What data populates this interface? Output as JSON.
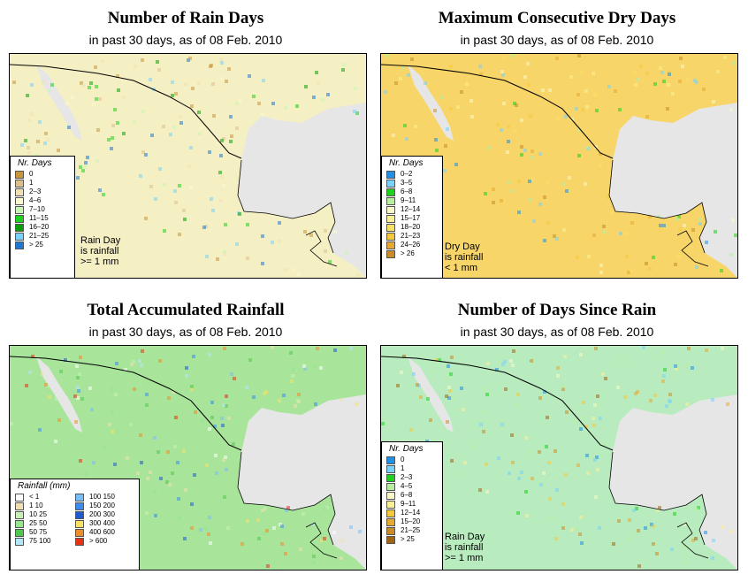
{
  "panels": {
    "rain_days": {
      "title": "Number of Rain Days",
      "subtitle": "in past 30 days, as of  08 Feb. 2010",
      "legend_title": "Nr. Days",
      "legend": [
        {
          "label": "0",
          "color": "#c8963c"
        },
        {
          "label": "1",
          "color": "#dcc08c"
        },
        {
          "label": "2–3",
          "color": "#f0e0b4"
        },
        {
          "label": "4–6",
          "color": "#fafacc"
        },
        {
          "label": "7–10",
          "color": "#c8f5b4"
        },
        {
          "label": "11–15",
          "color": "#1ed21e"
        },
        {
          "label": "16–20",
          "color": "#0a9e0a"
        },
        {
          "label": "21–25",
          "color": "#78d2fa"
        },
        {
          "label": "> 25",
          "color": "#1e78d2"
        }
      ],
      "note": "Rain Day\nis rainfall\n>= 1 mm",
      "land_color": "#f5efc4"
    },
    "dry_days": {
      "title": "Maximum Consecutive Dry Days",
      "subtitle": "in past 30 days, as of  08 Feb. 2010",
      "legend_title": "Nr. Days",
      "legend": [
        {
          "label": "0–2",
          "color": "#1e90e6"
        },
        {
          "label": "3–5",
          "color": "#78d2fa"
        },
        {
          "label": "6–8",
          "color": "#1ed21e"
        },
        {
          "label": "9–11",
          "color": "#b4f0a0"
        },
        {
          "label": "12–14",
          "color": "#fafac8"
        },
        {
          "label": "15–17",
          "color": "#faf096"
        },
        {
          "label": "18–20",
          "color": "#fae164"
        },
        {
          "label": "21–23",
          "color": "#f5c83c"
        },
        {
          "label": "24–26",
          "color": "#e6aa32"
        },
        {
          "label": "> 26",
          "color": "#c88c28"
        }
      ],
      "note": "Dry Day\nis rainfall\n< 1 mm",
      "land_color": "#f7d568"
    },
    "total_rain": {
      "title": "Total Accumulated Rainfall",
      "subtitle": "in past 30 days, as of  08 Feb. 2010",
      "legend_title": "Rainfall (mm)",
      "legend": [
        {
          "label": "< 1",
          "color": "#ffffff"
        },
        {
          "label": "1     10",
          "color": "#f0e0b4"
        },
        {
          "label": "10     25",
          "color": "#c8f0b4"
        },
        {
          "label": "25     50",
          "color": "#96e68c"
        },
        {
          "label": "50     75",
          "color": "#50c850"
        },
        {
          "label": "75   100",
          "color": "#b4e6fa"
        },
        {
          "label": "100   150",
          "color": "#78befa"
        },
        {
          "label": "150   200",
          "color": "#3c8cf0"
        },
        {
          "label": "200   300",
          "color": "#1e5ad2"
        },
        {
          "label": "300   400",
          "color": "#fae164"
        },
        {
          "label": "400   600",
          "color": "#f08c28"
        },
        {
          "label": "> 600",
          "color": "#e63214"
        }
      ],
      "land_color": "#a8e49a"
    },
    "days_since": {
      "title": "Number of Days Since Rain",
      "subtitle": "in past 30 days, as of  08 Feb. 2010",
      "legend_title": "Nr. Days",
      "legend": [
        {
          "label": "0",
          "color": "#1e90e6"
        },
        {
          "label": "1",
          "color": "#78d2fa"
        },
        {
          "label": "2–3",
          "color": "#1ed21e"
        },
        {
          "label": "4–5",
          "color": "#b4f0a0"
        },
        {
          "label": "6–8",
          "color": "#fafac8"
        },
        {
          "label": "9–11",
          "color": "#faf096"
        },
        {
          "label": "12–14",
          "color": "#f5c83c"
        },
        {
          "label": "15–20",
          "color": "#e6aa32"
        },
        {
          "label": "21–25",
          "color": "#c88c28"
        },
        {
          "label": "> 25",
          "color": "#a06414"
        }
      ],
      "note": "Rain Day\nis rainfall\n>= 1 mm",
      "land_color": "#b8ecbe"
    }
  }
}
